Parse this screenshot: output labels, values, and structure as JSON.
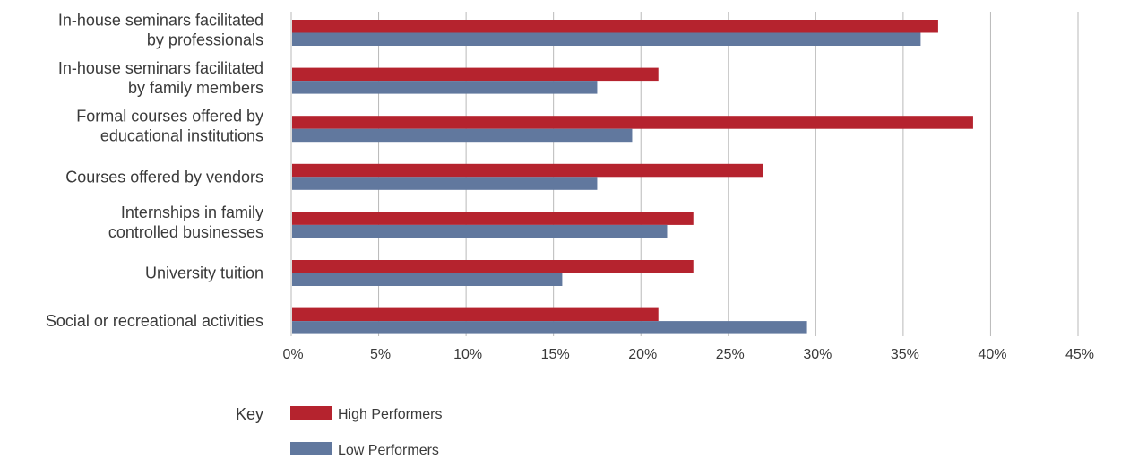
{
  "chart_data": {
    "type": "bar",
    "orientation": "horizontal",
    "categories": [
      [
        "In-house seminars facilitated",
        "by professionals"
      ],
      [
        "In-house seminars facilitated",
        "by family members"
      ],
      [
        "Formal courses offered by",
        "educational institutions"
      ],
      [
        "Courses offered by vendors"
      ],
      [
        "Internships in family",
        "controlled businesses"
      ],
      [
        "University tuition"
      ],
      [
        "Social or recreational activities"
      ]
    ],
    "series": [
      {
        "name": "High Performers",
        "color": "#b5232e",
        "values": [
          37,
          21,
          39,
          27,
          23,
          23,
          21
        ]
      },
      {
        "name": "Low Performers",
        "color": "#61789e",
        "values": [
          36,
          17.5,
          19.5,
          17.5,
          21.5,
          15.5,
          29.5
        ]
      }
    ],
    "xlim": [
      0,
      45
    ],
    "xticks": [
      0,
      5,
      10,
      15,
      20,
      25,
      30,
      35,
      40,
      45
    ],
    "xtick_labels": [
      "0%",
      "5%",
      "10%",
      "15%",
      "20%",
      "25%",
      "30%",
      "35%",
      "40%",
      "45%"
    ],
    "grid": "vertical",
    "legend_title": "Key",
    "legend_position": "bottom-left"
  }
}
